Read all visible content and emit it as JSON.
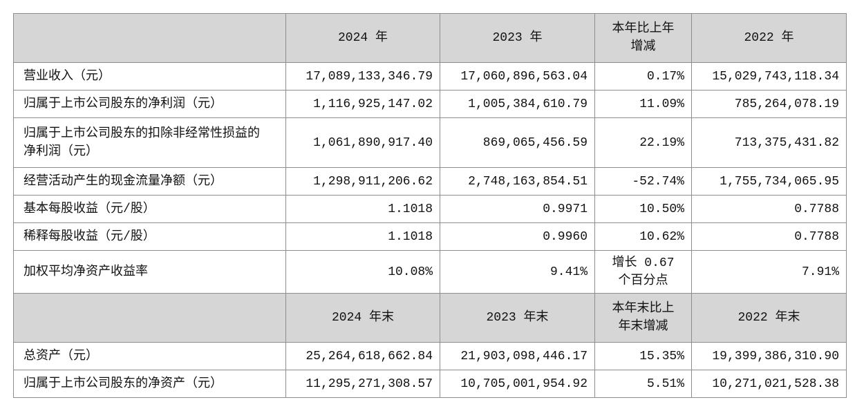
{
  "table": {
    "header": [
      "2024 年",
      "2023 年",
      "本年比上年增减",
      "2022 年"
    ],
    "rows": [
      [
        "营业收入（元）",
        "17,089,133,346.79",
        "17,060,896,563.04",
        "0.17%",
        "15,029,743,118.34"
      ],
      [
        "归属于上市公司股东的净利润（元）",
        "1,116,925,147.02",
        "1,005,384,610.79",
        "11.09%",
        "785,264,078.19"
      ],
      [
        "归属于上市公司股东的扣除非经常性损益的净利润（元）",
        "1,061,890,917.40",
        "869,065,456.59",
        "22.19%",
        "713,375,431.82"
      ],
      [
        "经营活动产生的现金流量净额（元）",
        "1,298,911,206.62",
        "2,748,163,854.51",
        "-52.74%",
        "1,755,734,065.95"
      ],
      [
        "基本每股收益（元/股）",
        "1.1018",
        "0.9971",
        "10.50%",
        "0.7788"
      ],
      [
        "稀释每股收益（元/股）",
        "1.1018",
        "0.9960",
        "10.62%",
        "0.7788"
      ],
      [
        "加权平均净资产收益率",
        "10.08%",
        "9.41%",
        "增长 0.67 个百分点",
        "7.91%"
      ]
    ],
    "header2": [
      "2024 年末",
      "2023 年末",
      "本年末比上年末增减",
      "2022 年末"
    ],
    "rows2": [
      [
        "总资产（元）",
        "25,264,618,662.84",
        "21,903,098,446.17",
        "15.35%",
        "19,399,386,310.90"
      ],
      [
        "归属于上市公司股东的净资产（元）",
        "11,295,271,308.57",
        "10,705,001,954.92",
        "5.51%",
        "10,271,021,528.38"
      ]
    ]
  }
}
